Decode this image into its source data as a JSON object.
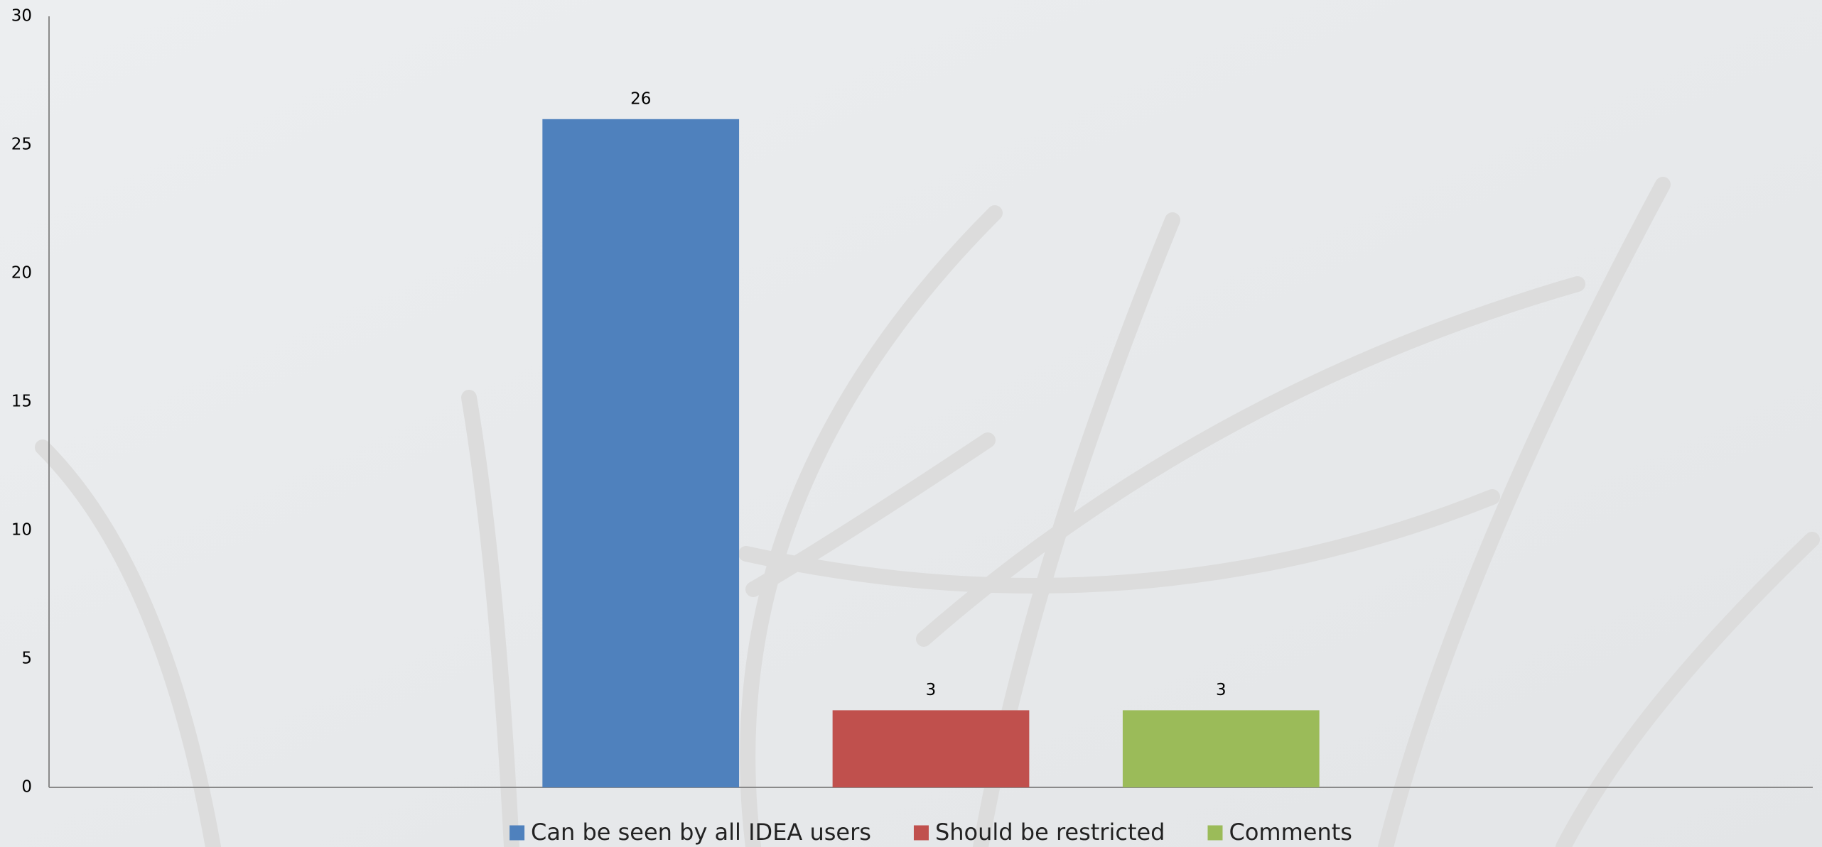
{
  "chart_data": {
    "type": "bar",
    "categories": [
      null
    ],
    "series": [
      {
        "name": "Can be seen by all IDEA users",
        "color": "#4f81bd",
        "values": [
          26
        ]
      },
      {
        "name": "Should be restricted",
        "color": "#c0504d",
        "values": [
          3
        ]
      },
      {
        "name": "Comments",
        "color": "#9bbb59",
        "values": [
          3
        ]
      }
    ],
    "ylim": [
      0,
      30
    ],
    "yticks": [
      0,
      5,
      10,
      15,
      20,
      25,
      30
    ],
    "data_labels": true,
    "legend": "bottom",
    "grid": false
  }
}
